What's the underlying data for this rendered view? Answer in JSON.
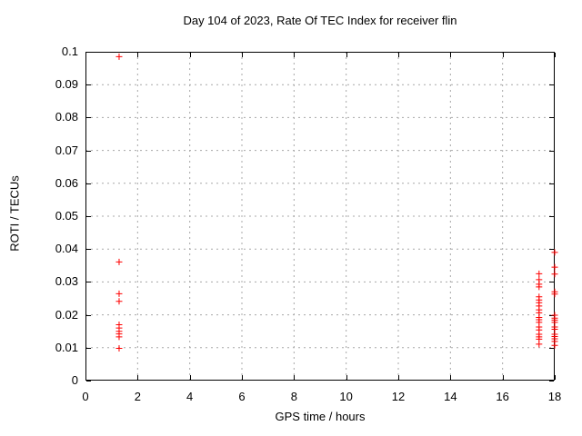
{
  "chart_data": {
    "type": "scatter",
    "title": "Day 104 of 2023, Rate Of TEC Index for receiver flin",
    "xlabel": "GPS time / hours",
    "ylabel": "ROTI / TECUs",
    "xlim": [
      0,
      18
    ],
    "ylim": [
      0,
      0.1
    ],
    "xtick_values": [
      0,
      2,
      4,
      6,
      8,
      10,
      12,
      14,
      16,
      18
    ],
    "xtick_labels": [
      "0",
      "2",
      "4",
      "6",
      "8",
      "10",
      "12",
      "14",
      "16",
      "18"
    ],
    "ytick_values": [
      0,
      0.01,
      0.02,
      0.03,
      0.04,
      0.05,
      0.06,
      0.07,
      0.08,
      0.09,
      0.1
    ],
    "ytick_labels": [
      "0",
      "0.01",
      "0.02",
      "0.03",
      "0.04",
      "0.05",
      "0.06",
      "0.07",
      "0.08",
      "0.09",
      "0.1"
    ],
    "grid": "dashed",
    "legend_position": "none",
    "background_color": "#ffffff",
    "axis_color": "#000000",
    "grid_color": "#a8a8a8",
    "marker": {
      "shape": "plus",
      "color": "#ff0000",
      "size": 7
    },
    "series": [
      {
        "name": "ROTI",
        "points": [
          [
            1.29,
            0.0985
          ],
          [
            1.29,
            0.0361
          ],
          [
            1.29,
            0.0264
          ],
          [
            1.29,
            0.0241
          ],
          [
            1.29,
            0.017
          ],
          [
            1.29,
            0.016
          ],
          [
            1.29,
            0.015
          ],
          [
            1.29,
            0.0142
          ],
          [
            1.29,
            0.0133
          ],
          [
            1.29,
            0.0098
          ],
          [
            17.4,
            0.0325
          ],
          [
            17.4,
            0.0307
          ],
          [
            17.4,
            0.0293
          ],
          [
            17.4,
            0.0285
          ],
          [
            17.4,
            0.0255
          ],
          [
            17.4,
            0.0245
          ],
          [
            17.4,
            0.0237
          ],
          [
            17.4,
            0.0227
          ],
          [
            17.4,
            0.0215
          ],
          [
            17.4,
            0.0206
          ],
          [
            17.4,
            0.0192
          ],
          [
            17.4,
            0.0185
          ],
          [
            17.4,
            0.0177
          ],
          [
            17.4,
            0.0163
          ],
          [
            17.4,
            0.0154
          ],
          [
            17.4,
            0.0141
          ],
          [
            17.4,
            0.0133
          ],
          [
            17.4,
            0.0126
          ],
          [
            17.4,
            0.0111
          ],
          [
            18.0,
            0.039
          ],
          [
            18.0,
            0.0345
          ],
          [
            18.0,
            0.0324
          ],
          [
            18.0,
            0.027
          ],
          [
            18.0,
            0.0263
          ],
          [
            18.0,
            0.0199
          ],
          [
            18.0,
            0.019
          ],
          [
            18.0,
            0.0184
          ],
          [
            18.0,
            0.0177
          ],
          [
            18.0,
            0.0163
          ],
          [
            18.0,
            0.0156
          ],
          [
            18.0,
            0.0141
          ],
          [
            18.0,
            0.0134
          ],
          [
            18.0,
            0.0127
          ],
          [
            18.0,
            0.0119
          ],
          [
            18.0,
            0.0107
          ]
        ]
      }
    ]
  }
}
